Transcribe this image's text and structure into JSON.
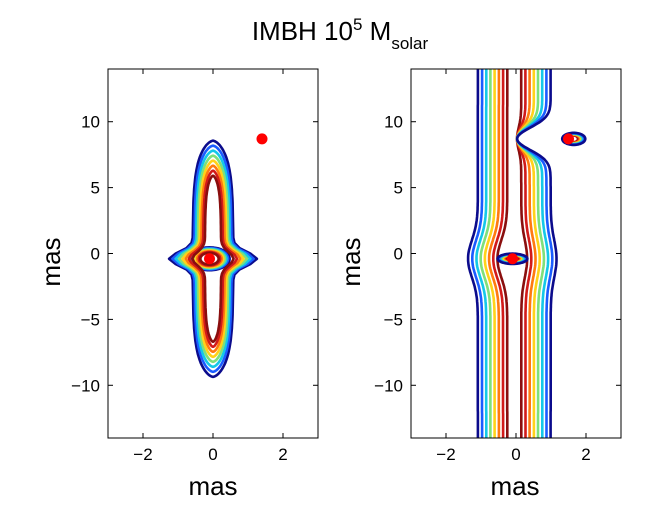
{
  "figure": {
    "title_main": "IMBH 10",
    "title_sup": "5",
    "title_mid": " M",
    "title_sub": "solar"
  },
  "contour_colors": [
    "#0b0b8c",
    "#1a5cff",
    "#14c8e8",
    "#7ee07a",
    "#ffd21a",
    "#ff7a10",
    "#d21a1a",
    "#8a0e0e"
  ],
  "marker_color": "#ff0000",
  "chart_data": [
    {
      "type": "contour",
      "title": "",
      "xlabel": "mas",
      "ylabel": "mas",
      "xlim": [
        -3,
        3
      ],
      "ylim": [
        -14,
        14
      ],
      "xticks": [
        -2,
        0,
        2
      ],
      "yticks": [
        -10,
        -5,
        0,
        5,
        10
      ],
      "grid": false,
      "legend": "none",
      "levels": 8,
      "points": [
        {
          "x": 1.4,
          "y": 8.7
        },
        {
          "x": -0.1,
          "y": -0.4
        }
      ],
      "shape": {
        "kind": "isolated",
        "ring_center": [
          -0.1,
          -0.4
        ],
        "ring_x_inner": 0.26,
        "ring_x_step": 0.045,
        "ring_y_inner": 0.45,
        "ring_y_step": 0.06,
        "lobe_y_inner": 3.8,
        "lobe_y_step": 0.38,
        "lobe_x_inner": 0.05,
        "lobe_x_step": 0.05
      }
    },
    {
      "type": "contour",
      "title": "",
      "xlabel": "mas",
      "ylabel": "mas",
      "xlim": [
        -3,
        3
      ],
      "ylim": [
        -14,
        14
      ],
      "xticks": [
        -2,
        0,
        2
      ],
      "yticks": [
        -10,
        -5,
        0,
        5,
        10
      ],
      "grid": false,
      "legend": "none",
      "levels": 8,
      "points": [
        {
          "x": 1.5,
          "y": 8.7
        },
        {
          "x": -0.1,
          "y": -0.4
        }
      ],
      "shape": {
        "kind": "band",
        "band_left_inner": -0.25,
        "band_right_inner": 0.15,
        "band_step": 0.12,
        "bulge_amp": 0.28,
        "bulge_center_y": -0.4,
        "bulge_width": 2.0,
        "knee_center_y": 8.7,
        "knee_amp": 0.12,
        "ring_center": [
          -0.1,
          -0.4
        ],
        "ring_x_inner": 0.18,
        "ring_x_step": 0.035,
        "ring_y_inner": 0.25,
        "ring_y_step": 0.02,
        "small_center": [
          1.65,
          8.7
        ],
        "small_x_inner": 0.12,
        "small_x_step": 0.03,
        "small_y_inner": 0.25,
        "small_y_step": 0.03
      }
    }
  ]
}
